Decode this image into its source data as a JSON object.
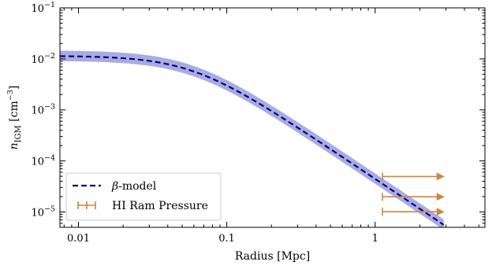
{
  "chart_data": {
    "type": "line",
    "xlabel": "Radius [Mpc]",
    "ylabel": "n_IGM [cm^-3]",
    "xscale": "log",
    "yscale": "log",
    "xlim": [
      0.0075,
      5.5
    ],
    "ylim": [
      5e-06,
      0.1
    ],
    "x_ticks": [
      {
        "value": 0.01,
        "label": "0.01"
      },
      {
        "value": 0.1,
        "label": "0.1"
      },
      {
        "value": 1,
        "label": "1"
      }
    ],
    "y_ticks": [
      {
        "value": 1e-05,
        "base": "10",
        "exp": "−5"
      },
      {
        "value": 0.0001,
        "base": "10",
        "exp": "−4"
      },
      {
        "value": 0.001,
        "base": "10",
        "exp": "−3"
      },
      {
        "value": 0.01,
        "base": "10",
        "exp": "−2"
      },
      {
        "value": 0.1,
        "base": "10",
        "exp": "−1"
      }
    ],
    "series": [
      {
        "name": "β-model",
        "style": "dashed",
        "color": "#00008b",
        "band_color": "#a9acdf",
        "model": {
          "n0": 0.0115,
          "r_core": 0.058,
          "beta": 0.65,
          "x_min": 0.0075,
          "x_max": 2.9
        },
        "band_factor": [
          0.8,
          1.28
        ]
      },
      {
        "name": "HI Ram Pressure",
        "type": "lower_limit_arrows",
        "color": "#cd853f",
        "points": [
          {
            "x": 1.12,
            "y": 4.95e-05,
            "x_to": 2.9
          },
          {
            "x": 1.12,
            "y": 1.98e-05,
            "x_to": 2.9
          },
          {
            "x": 1.12,
            "y": 1.01e-05,
            "x_to": 2.9
          }
        ]
      }
    ],
    "legend": {
      "position": "lower-left"
    },
    "grid": false
  }
}
